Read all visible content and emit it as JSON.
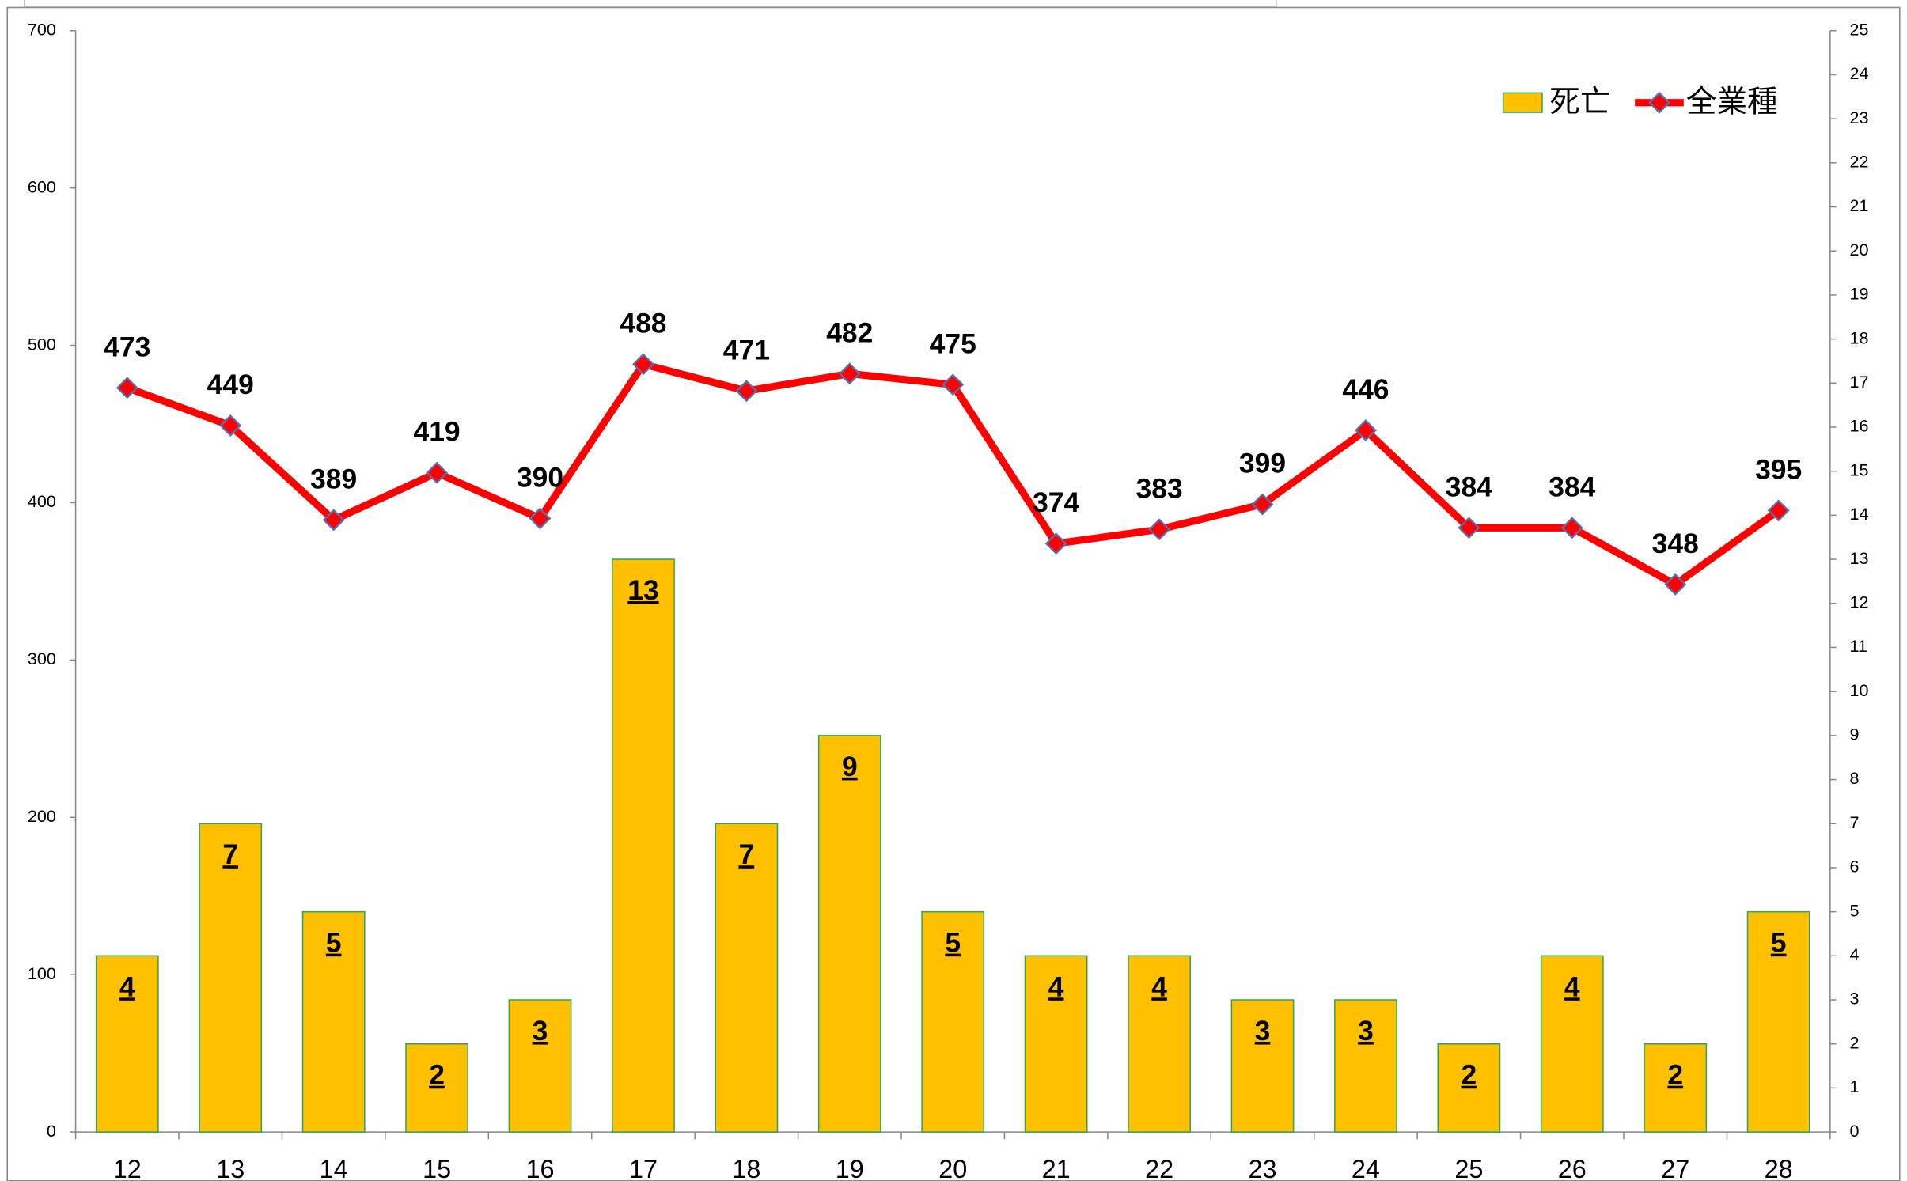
{
  "chart_data": {
    "type": "bar_line",
    "categories": [
      "12",
      "13",
      "14",
      "15",
      "16",
      "17",
      "18",
      "19",
      "20",
      "21",
      "22",
      "23",
      "24",
      "25",
      "26",
      "27",
      "28"
    ],
    "series": [
      {
        "name": "死亡",
        "type": "bar",
        "axis": "y2",
        "color": "#FFC000",
        "values": [
          4,
          7,
          5,
          2,
          3,
          13,
          7,
          9,
          5,
          4,
          4,
          3,
          3,
          2,
          4,
          2,
          5
        ]
      },
      {
        "name": "全業種",
        "type": "line",
        "axis": "y",
        "color": "#FF0000",
        "values": [
          473,
          449,
          389,
          419,
          390,
          488,
          471,
          482,
          475,
          374,
          383,
          399,
          446,
          384,
          384,
          348,
          395
        ]
      }
    ],
    "ylim": [
      0,
      700
    ],
    "yticks": [
      0,
      100,
      200,
      300,
      400,
      500,
      600,
      700
    ],
    "y2lim": [
      0,
      25
    ],
    "y2ticks": [
      0,
      1,
      2,
      3,
      4,
      5,
      6,
      7,
      8,
      9,
      10,
      11,
      12,
      13,
      14,
      15,
      16,
      17,
      18,
      19,
      20,
      21,
      22,
      23,
      24,
      25
    ],
    "legend": "top-right"
  }
}
